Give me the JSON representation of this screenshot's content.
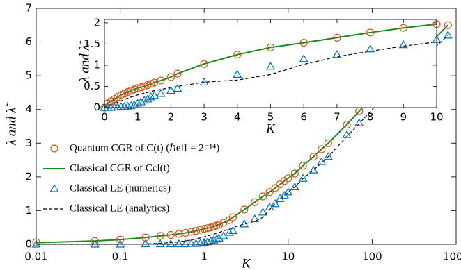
{
  "chart_data": [
    {
      "type": "line",
      "xlabel": "K",
      "ylabel": "λ and λ̃",
      "xscale": "log",
      "xlim": [
        0.01,
        1000
      ],
      "ylim": [
        0,
        7
      ],
      "xticks": [
        0.01,
        0.1,
        1,
        10,
        100,
        1000
      ],
      "yticks": [
        0,
        1,
        2,
        3,
        4,
        5,
        6,
        7
      ],
      "legend": "center left",
      "x": [
        0.01,
        0.05,
        0.1,
        0.2,
        0.3,
        0.4,
        0.5,
        0.6,
        0.7,
        0.8,
        0.9,
        1,
        1.1,
        1.2,
        1.3,
        1.4,
        1.5,
        1.7,
        2,
        2.2,
        3,
        4,
        5,
        6,
        7,
        8,
        9,
        10,
        12,
        15,
        20,
        25,
        30,
        50,
        70,
        130,
        250,
        400,
        800
      ],
      "series": [
        {
          "name": "Quantum CGR of C(t) (ℏeff = 2⁻¹⁴)",
          "color": "#d95319",
          "marker": "circle",
          "values": [
            0.06,
            0.1,
            0.14,
            0.2,
            0.25,
            0.28,
            0.31,
            0.34,
            0.37,
            0.4,
            0.43,
            0.46,
            0.48,
            0.5,
            0.53,
            0.56,
            0.59,
            0.64,
            0.72,
            0.8,
            1.03,
            1.25,
            1.42,
            1.55,
            1.67,
            1.78,
            1.88,
            1.96,
            2.1,
            2.33,
            2.6,
            2.82,
            3.0,
            3.55,
            3.95,
            4.6,
            5.25,
            5.75,
            6.5
          ]
        },
        {
          "name": "Classical CGR of Ccl(t)",
          "color": "#1a8a1a",
          "linestyle": "solid",
          "values": [
            0.05,
            0.1,
            0.14,
            0.2,
            0.25,
            0.28,
            0.31,
            0.34,
            0.37,
            0.4,
            0.43,
            0.46,
            0.48,
            0.5,
            0.53,
            0.56,
            0.59,
            0.64,
            0.72,
            0.8,
            1.03,
            1.25,
            1.42,
            1.55,
            1.67,
            1.78,
            1.88,
            1.96,
            2.1,
            2.33,
            2.6,
            2.82,
            3.0,
            3.55,
            3.95,
            4.6,
            5.25,
            5.75,
            6.5
          ]
        },
        {
          "name": "Classical LE (numerics)",
          "color": "#0072bd",
          "marker": "triangle",
          "values": [
            0,
            0,
            0,
            0.01,
            0.01,
            0.01,
            0.01,
            0.01,
            0.02,
            0.02,
            0.03,
            0.05,
            0.07,
            0.1,
            0.12,
            0.15,
            0.18,
            0.25,
            0.35,
            0.4,
            0.6,
            0.75,
            0.95,
            1.1,
            1.2,
            1.35,
            1.45,
            1.55,
            1.7,
            1.95,
            2.2,
            2.45,
            2.6,
            3.25,
            3.6,
            4.35,
            5.0,
            5.55,
            6.2
          ]
        },
        {
          "name": "Classical LE (analytics)",
          "color": "#000000",
          "linestyle": "dashed",
          "values": [
            0,
            0,
            0,
            0.01,
            0.03,
            0.05,
            0.07,
            0.1,
            0.13,
            0.16,
            0.19,
            0.22,
            0.25,
            0.28,
            0.3,
            0.33,
            0.35,
            0.4,
            0.45,
            0.5,
            0.6,
            0.68,
            0.8,
            1.03,
            1.2,
            1.33,
            1.45,
            1.55,
            1.7,
            1.95,
            2.2,
            2.42,
            2.6,
            3.2,
            3.58,
            4.3,
            4.95,
            5.5,
            6.2
          ]
        }
      ]
    },
    {
      "type": "line",
      "xlabel": "K",
      "ylabel": "λ and λ̃",
      "xscale": "linear",
      "xlim": [
        0,
        10
      ],
      "ylim": [
        0,
        2.08
      ],
      "xticks": [
        0,
        1,
        2,
        3,
        4,
        5,
        6,
        7,
        8,
        9,
        10
      ],
      "yticks": [
        0,
        0.5,
        1,
        1.5,
        2
      ],
      "x": [
        0,
        0.1,
        0.2,
        0.3,
        0.4,
        0.5,
        0.6,
        0.7,
        0.8,
        0.9,
        1,
        1.1,
        1.2,
        1.3,
        1.4,
        1.5,
        1.7,
        2,
        2.2,
        3,
        4,
        5,
        6,
        7,
        8,
        9,
        10
      ],
      "series": [
        {
          "color": "#d95319",
          "marker": "circle",
          "values": [
            0,
            0.1,
            0.15,
            0.2,
            0.25,
            0.3,
            0.33,
            0.37,
            0.4,
            0.43,
            0.46,
            0.48,
            0.5,
            0.53,
            0.56,
            0.59,
            0.64,
            0.72,
            0.8,
            1.03,
            1.25,
            1.42,
            1.53,
            1.65,
            1.77,
            1.88,
            1.97
          ]
        },
        {
          "color": "#1a8a1a",
          "linestyle": "solid",
          "values": [
            0,
            0.1,
            0.15,
            0.2,
            0.25,
            0.3,
            0.33,
            0.37,
            0.4,
            0.43,
            0.46,
            0.48,
            0.5,
            0.53,
            0.56,
            0.59,
            0.64,
            0.72,
            0.8,
            1.03,
            1.25,
            1.42,
            1.53,
            1.65,
            1.77,
            1.88,
            1.97
          ]
        },
        {
          "color": "#0072bd",
          "marker": "triangle",
          "values": [
            0,
            0,
            0,
            0.01,
            0.01,
            0.02,
            0.02,
            0.03,
            0.04,
            0.06,
            0.1,
            0.13,
            0.17,
            0.2,
            0.25,
            0.28,
            0.33,
            0.4,
            0.45,
            0.6,
            0.78,
            0.97,
            1.15,
            1.25,
            1.38,
            1.48,
            1.6
          ]
        },
        {
          "color": "#000000",
          "linestyle": "dashed",
          "values": [
            0,
            0.03,
            0.07,
            0.1,
            0.13,
            0.16,
            0.19,
            0.22,
            0.25,
            0.27,
            0.3,
            0.32,
            0.34,
            0.36,
            0.38,
            0.4,
            0.43,
            0.47,
            0.5,
            0.6,
            0.65,
            0.78,
            1.02,
            1.2,
            1.33,
            1.45,
            1.55
          ]
        }
      ]
    }
  ]
}
